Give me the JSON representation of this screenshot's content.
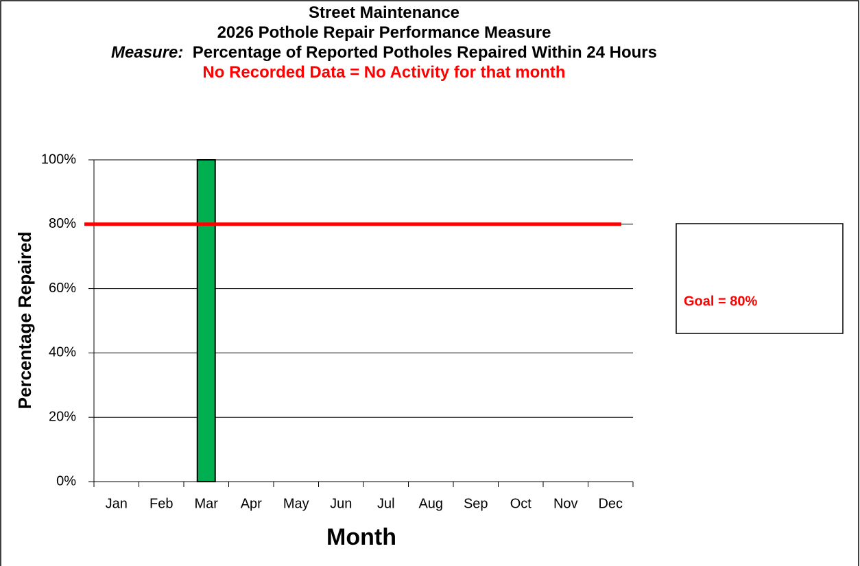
{
  "chart_data": {
    "type": "bar",
    "title": [
      "Street Maintenance",
      "2026 Pothole Repair Performance Measure"
    ],
    "measure_label": "Measure:",
    "measure": "Percentage of Reported Potholes Repaired Within 24 Hours",
    "subtitle": "No Recorded Data = No Activity for that month",
    "x_label": "Month",
    "y_label": "Percentage Repaired",
    "categories": [
      "Jan",
      "Feb",
      "Mar",
      "Apr",
      "May",
      "Jun",
      "Jul",
      "Aug",
      "Sep",
      "Oct",
      "Nov",
      "Dec"
    ],
    "values": [
      null,
      null,
      100,
      null,
      null,
      null,
      null,
      null,
      null,
      null,
      null,
      null
    ],
    "color": "#00b050",
    "goal": {
      "label": "Goal = 80%",
      "value": 80,
      "color": "#ff0000"
    },
    "ylim": [
      0,
      100
    ],
    "yticks": [
      {
        "value": 0,
        "label": "0%"
      },
      {
        "value": 20,
        "label": "20%"
      },
      {
        "value": 40,
        "label": "40%"
      },
      {
        "value": 60,
        "label": "60%"
      },
      {
        "value": 80,
        "label": "80%"
      },
      {
        "value": 100,
        "label": "100%"
      }
    ],
    "grid": true
  }
}
